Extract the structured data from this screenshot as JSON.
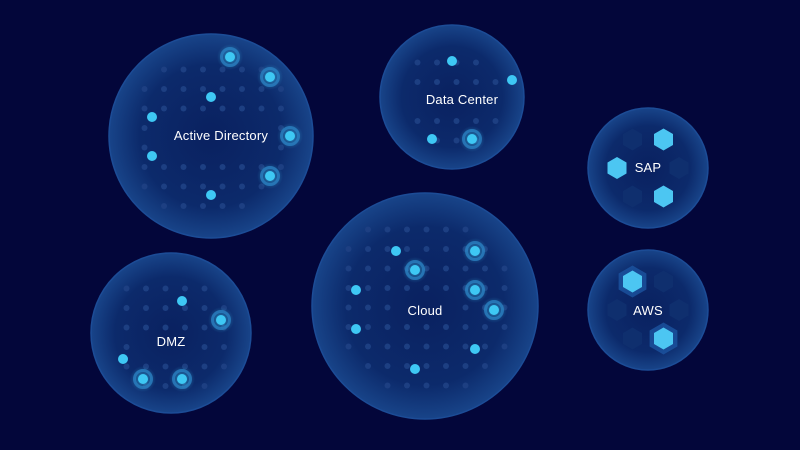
{
  "colors": {
    "background": "#03063a",
    "bubble_fill": "#0c2a6b",
    "bubble_rim": "#1c4c96",
    "dot_dim": "#1d3f82",
    "dot_bright": "#3ec8f4",
    "hex_dim": "#0f2f6e",
    "hex_bright": "#4cc6f2"
  },
  "zones": [
    {
      "id": "active-directory",
      "label": "Active Directory",
      "icon": "dot-grid-icon"
    },
    {
      "id": "data-center",
      "label": "Data Center",
      "icon": "dot-grid-icon"
    },
    {
      "id": "cloud",
      "label": "Cloud",
      "icon": "dot-grid-icon"
    },
    {
      "id": "dmz",
      "label": "DMZ",
      "icon": "dot-grid-icon"
    },
    {
      "id": "sap",
      "label": "SAP",
      "icon": "hexagon-icon"
    },
    {
      "id": "aws",
      "label": "AWS",
      "icon": "hexagon-icon"
    }
  ]
}
